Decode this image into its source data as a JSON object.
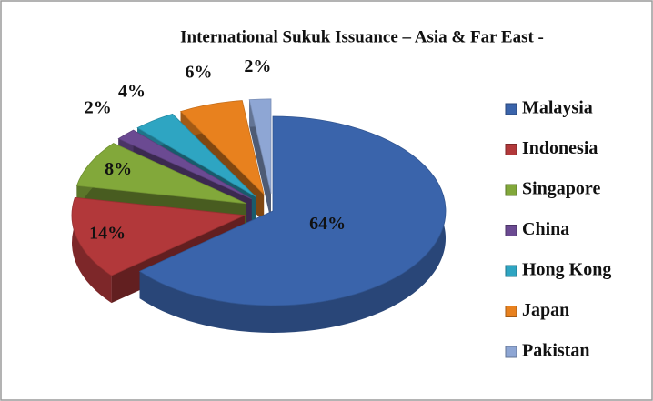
{
  "chart_data": {
    "type": "pie",
    "title": "International Sukuk Issuance – Asia & Far East -",
    "categories": [
      "Malaysia",
      "Indonesia",
      "Singapore",
      "China",
      "Hong Kong",
      "Japan",
      "Pakistan"
    ],
    "values": [
      64,
      14,
      8,
      2,
      4,
      6,
      2
    ],
    "value_labels": [
      "64%",
      "14%",
      "8%",
      "2%",
      "4%",
      "6%",
      "2%"
    ],
    "colors": [
      "#3a64ab",
      "#b2383a",
      "#82a83a",
      "#6b4a92",
      "#2ea5c2",
      "#e8811e",
      "#8ea6d4"
    ],
    "legend": "right",
    "exploded": true,
    "three_d": true
  }
}
